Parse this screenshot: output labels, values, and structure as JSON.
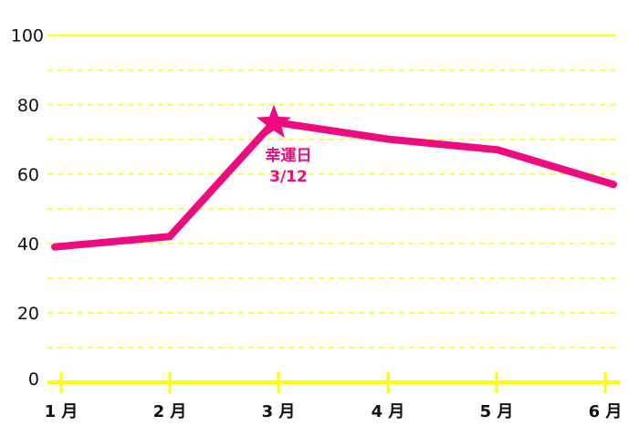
{
  "chart_data": {
    "type": "line",
    "categories": [
      "1月",
      "2月",
      "3月",
      "4月",
      "5月",
      "6月"
    ],
    "values": [
      39,
      42,
      75,
      70,
      67,
      57
    ],
    "ylim": [
      0,
      100
    ],
    "yticks": [
      "0",
      "20",
      "40",
      "60",
      "80",
      "100"
    ],
    "grid": true,
    "annotation": {
      "category": "3月",
      "value": 75,
      "marker": "star-icon",
      "line1": "幸運日",
      "line2": "3/12"
    },
    "colors": {
      "line": "#ee0a7f",
      "grid": "#fcfc50",
      "axis": "#ffff00",
      "text": "#111111"
    }
  }
}
